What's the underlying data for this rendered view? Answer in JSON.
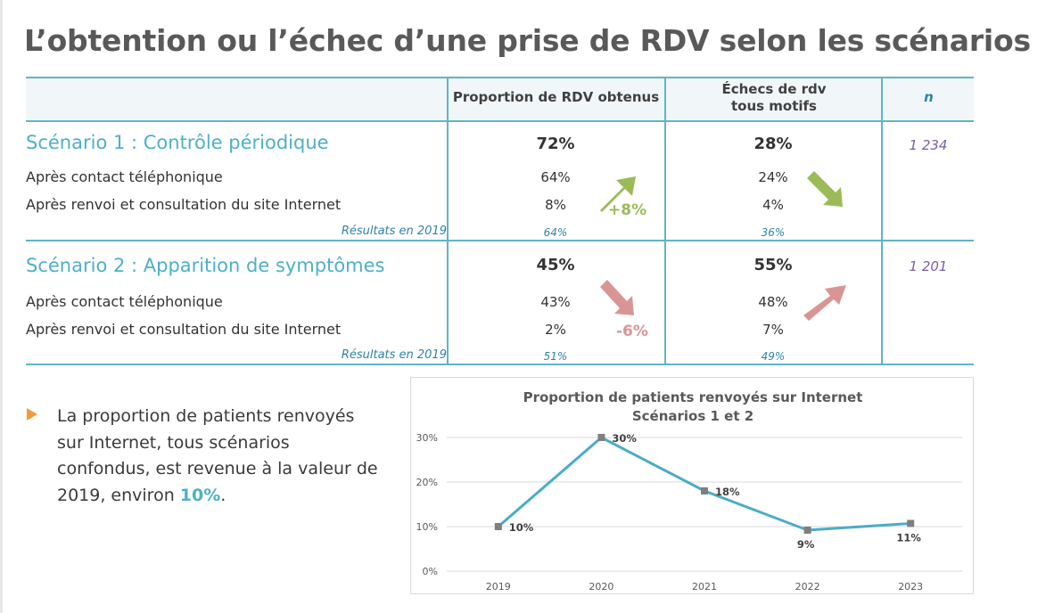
{
  "title": "L’obtention ou l’échec d’une prise de RDV selon les scénarios",
  "table": {
    "headers": {
      "obtained": "Proportion de RDV obtenus",
      "failures_line1": "Échecs de rdv",
      "failures_line2": "tous motifs",
      "n": "n"
    },
    "scenarios": [
      {
        "title": "Scénario 1 : Contrôle périodique",
        "obtained_total": "72%",
        "failures_total": "28%",
        "n": "1 234",
        "rows": [
          {
            "label": "Après contact téléphonique",
            "obtained": "64%",
            "failures": "24%"
          },
          {
            "label": "Après renvoi et consultation du site Internet",
            "obtained": "8%",
            "failures": "4%"
          }
        ],
        "results_label": "Résultats en 2019",
        "results_obtained": "64%",
        "results_failures": "36%",
        "delta": "+8%",
        "delta_color": "#9bbb59",
        "obtained_trend": "up",
        "failures_trend": "down"
      },
      {
        "title": "Scénario 2 : Apparition de symptômes",
        "obtained_total": "45%",
        "failures_total": "55%",
        "n": "1 201",
        "rows": [
          {
            "label": "Après contact téléphonique",
            "obtained": "43%",
            "failures": "48%"
          },
          {
            "label": "Après renvoi et consultation du site Internet",
            "obtained": "2%",
            "failures": "7%"
          }
        ],
        "results_label": "Résultats en 2019",
        "results_obtained": "51%",
        "results_failures": "49%",
        "delta": "-6%",
        "delta_color": "#d99594",
        "obtained_trend": "down",
        "failures_trend": "up"
      }
    ]
  },
  "bullet": {
    "icon": "triangle-right-icon",
    "text_before": "La proportion de patients renvoyés sur Internet, tous scénarios confondus, est revenue à la valeur de 2019, environ ",
    "highlight": "10%",
    "text_after": "."
  },
  "colors": {
    "accent": "#4db0c8",
    "rule": "#5fb4c9",
    "positive": "#9bbb59",
    "negative": "#d99594",
    "bullet": "#f39a3c",
    "n_value": "#7b5ea7",
    "line": "#4bacc6",
    "marker": "#7f7f7f"
  },
  "chart_data": {
    "type": "line",
    "title": "Proportion de patients renvoyés sur Internet",
    "subtitle": "Scénarios 1 et 2",
    "categories": [
      "2019",
      "2020",
      "2021",
      "2022",
      "2023"
    ],
    "series": [
      {
        "name": "Proportion renvoyés sur Internet",
        "values": [
          10,
          30,
          18,
          9.2,
          10.7
        ],
        "labels": [
          "10%",
          "30%",
          "18%",
          "9%",
          "11%"
        ]
      }
    ],
    "xlabel": "",
    "ylabel": "",
    "ylim": [
      0,
      30
    ],
    "yticks": [
      0,
      10,
      20,
      30
    ],
    "ytick_labels": [
      "0%",
      "10%",
      "20%",
      "30%"
    ],
    "grid": true,
    "legend": "none",
    "label_positions": [
      "right",
      "right",
      "right",
      "below",
      "below"
    ]
  }
}
